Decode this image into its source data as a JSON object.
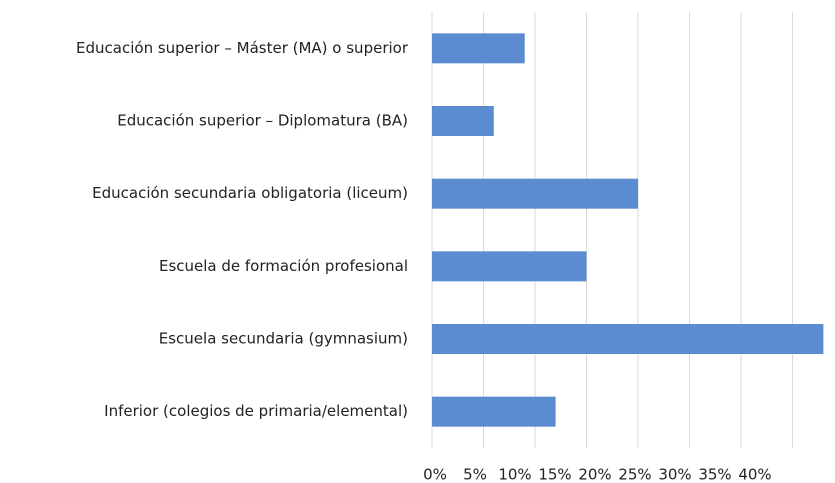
{
  "chart_data": {
    "type": "bar",
    "orientation": "horizontal",
    "categories": [
      "Educación superior – Máster (MA) o  superior",
      "Educación superior – Diplomatura  (BA)",
      "Educación secundaria obligatoria  (liceum)",
      "Escuela de formación  profesional",
      "Escuela secundaria  (gymnasium)",
      "Inferior (colegios de  primaria/elemental)"
    ],
    "values": [
      9,
      6,
      20,
      15,
      38,
      12
    ],
    "color": "#5b8bd0",
    "xlim": [
      0,
      40
    ],
    "xticks": [
      {
        "value": 0,
        "label": "0%"
      },
      {
        "value": 5,
        "label": "5%"
      },
      {
        "value": 10,
        "label": "10%"
      },
      {
        "value": 15,
        "label": "15%"
      },
      {
        "value": 20,
        "label": "20%"
      },
      {
        "value": 25,
        "label": "25%"
      },
      {
        "value": 30,
        "label": "30%"
      },
      {
        "value": 35,
        "label": "35%"
      },
      {
        "value": 40,
        "label": "40%"
      }
    ],
    "grid": true
  }
}
